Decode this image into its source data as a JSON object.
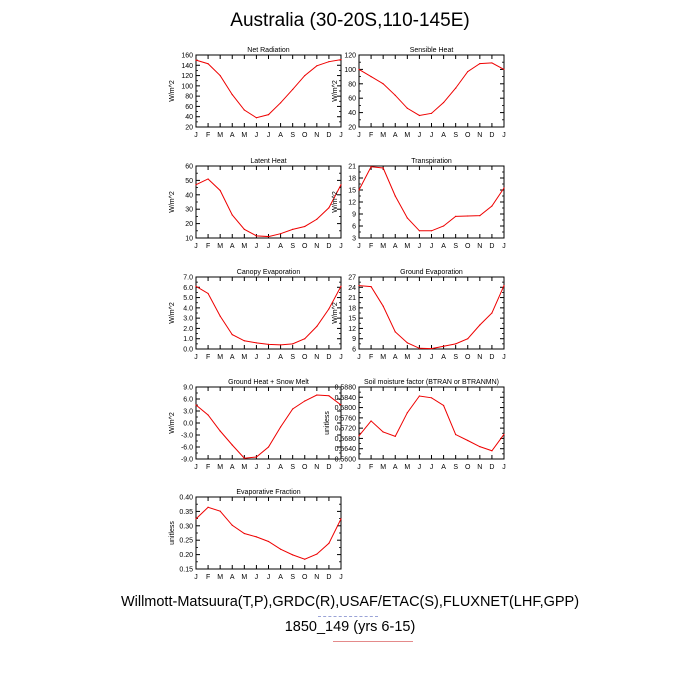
{
  "page": {
    "title": "Australia (30-20S,110-145E)",
    "footer_line1": "Willmott-Matsuura(T,P),GRDC(R),USAF/ETAC(S),FLUXNET(LHF,GPP)",
    "footer_line2": "1850_149 (yrs 6-15)"
  },
  "colors": {
    "line": "#ee0000",
    "axis": "#000000"
  },
  "chart_data": [
    {
      "type": "line",
      "title": "Net Radiation",
      "ylabel": "W/m^2",
      "categories": [
        "J",
        "F",
        "M",
        "A",
        "M",
        "J",
        "J",
        "A",
        "S",
        "O",
        "N",
        "D",
        "J"
      ],
      "values": [
        150,
        143,
        120,
        83,
        53,
        38,
        44,
        67,
        93,
        120,
        139,
        147,
        151
      ],
      "ylim": [
        20,
        160
      ],
      "yticks": [
        "20",
        "40",
        "60",
        "80",
        "100",
        "120",
        "140",
        "160"
      ]
    },
    {
      "type": "line",
      "title": "Sensible Heat",
      "ylabel": "W/m^2",
      "categories": [
        "J",
        "F",
        "M",
        "A",
        "M",
        "J",
        "J",
        "A",
        "S",
        "O",
        "N",
        "D",
        "J"
      ],
      "values": [
        100,
        90,
        80,
        64,
        46,
        36,
        39,
        54,
        74,
        97,
        108,
        109,
        100
      ],
      "ylim": [
        20,
        120
      ],
      "yticks": [
        "20",
        "40",
        "60",
        "80",
        "100",
        "120"
      ]
    },
    {
      "type": "line",
      "title": "Latent Heat",
      "ylabel": "W/m^2",
      "categories": [
        "J",
        "F",
        "M",
        "A",
        "M",
        "J",
        "J",
        "A",
        "S",
        "O",
        "N",
        "D",
        "J"
      ],
      "values": [
        47,
        51,
        43,
        26,
        16,
        11.5,
        11,
        13,
        16,
        18,
        23,
        31,
        47
      ],
      "ylim": [
        10,
        60
      ],
      "yticks": [
        "10",
        "20",
        "30",
        "40",
        "50",
        "60"
      ]
    },
    {
      "type": "line",
      "title": "Transpiration",
      "ylabel": "W/m^2",
      "categories": [
        "J",
        "F",
        "M",
        "A",
        "M",
        "J",
        "J",
        "A",
        "S",
        "O",
        "N",
        "D",
        "J"
      ],
      "values": [
        15,
        20.8,
        20.5,
        13.5,
        8,
        4.8,
        4.8,
        6,
        8.4,
        8.5,
        8.6,
        11,
        15.5
      ],
      "ylim": [
        3,
        21
      ],
      "yticks": [
        "3",
        "6",
        "9",
        "12",
        "15",
        "18",
        "21"
      ]
    },
    {
      "type": "line",
      "title": "Canopy Evaporation",
      "ylabel": "W/m^2",
      "categories": [
        "J",
        "F",
        "M",
        "A",
        "M",
        "J",
        "J",
        "A",
        "S",
        "O",
        "N",
        "D",
        "J"
      ],
      "values": [
        6.1,
        5.4,
        3.2,
        1.4,
        0.8,
        0.6,
        0.45,
        0.4,
        0.5,
        1.0,
        2.2,
        3.9,
        6.1
      ],
      "ylim": [
        0.0,
        7.0
      ],
      "yticks": [
        "0.0",
        "1.0",
        "2.0",
        "3.0",
        "4.0",
        "5.0",
        "6.0",
        "7.0"
      ]
    },
    {
      "type": "line",
      "title": "Ground Evaporation",
      "ylabel": "W/m^2",
      "categories": [
        "J",
        "F",
        "M",
        "A",
        "M",
        "J",
        "J",
        "A",
        "S",
        "O",
        "N",
        "D",
        "J"
      ],
      "values": [
        24.5,
        24.2,
        18.5,
        11,
        7.8,
        6.2,
        6.1,
        6.8,
        7.5,
        9,
        13,
        16.5,
        24.5
      ],
      "ylim": [
        6,
        27
      ],
      "yticks": [
        "6",
        "9",
        "12",
        "15",
        "18",
        "21",
        "24",
        "27"
      ]
    },
    {
      "type": "line",
      "title": "Ground Heat + Snow Melt",
      "ylabel": "W/m^2",
      "categories": [
        "J",
        "F",
        "M",
        "A",
        "M",
        "J",
        "J",
        "A",
        "S",
        "O",
        "N",
        "D",
        "J"
      ],
      "values": [
        4.5,
        2.0,
        -2.0,
        -5.5,
        -8.8,
        -8.5,
        -6.0,
        -1.0,
        3.5,
        5.5,
        7.0,
        6.8,
        4.5
      ],
      "ylim": [
        -9.0,
        9.0
      ],
      "yticks": [
        "-9.0",
        "-6.0",
        "-3.0",
        "0.0",
        "3.0",
        "6.0",
        "9.0"
      ]
    },
    {
      "type": "line",
      "title": "Soil moisture factor (BTRAN or BTRANMN)",
      "ylabel": "unitless",
      "categories": [
        "J",
        "F",
        "M",
        "A",
        "M",
        "J",
        "J",
        "A",
        "S",
        "O",
        "N",
        "D",
        "J"
      ],
      "values": [
        0.569,
        0.5748,
        0.5705,
        0.5688,
        0.578,
        0.5845,
        0.5838,
        0.5808,
        0.5695,
        0.5672,
        0.5648,
        0.5632,
        0.5696
      ],
      "ylim": [
        0.56,
        0.588
      ],
      "yticks": [
        "0.5600",
        "0.5640",
        "0.5680",
        "0.5720",
        "0.5760",
        "0.5800",
        "0.5840",
        "0.5880"
      ]
    },
    {
      "type": "line",
      "title": "Evaporative Fraction",
      "ylabel": "unitless",
      "categories": [
        "J",
        "F",
        "M",
        "A",
        "M",
        "J",
        "J",
        "A",
        "S",
        "O",
        "N",
        "D",
        "J"
      ],
      "values": [
        0.315,
        0.36,
        0.345,
        0.29,
        0.258,
        0.245,
        0.227,
        0.197,
        0.175,
        0.158,
        0.178,
        0.22,
        0.315
      ],
      "ylim": [
        0.12,
        0.4
      ],
      "yticks": [
        "0.15",
        "0.20",
        "0.25",
        "0.30",
        "0.35",
        "0.40"
      ]
    }
  ]
}
